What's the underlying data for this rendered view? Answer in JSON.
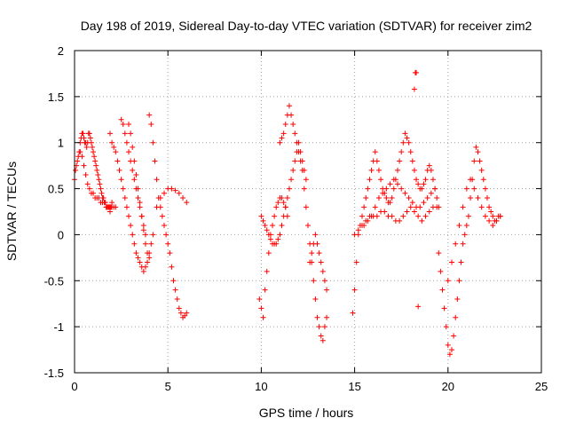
{
  "chart_data": {
    "type": "scatter",
    "title": "Day 198 of 2019, Sidereal Day-to-day VTEC variation (SDTVAR) for receiver zim2",
    "xlabel": "GPS time / hours",
    "ylabel": "SDTVAR / TECUs",
    "xlim": [
      0,
      25
    ],
    "ylim": [
      -1.5,
      2
    ],
    "xticks": [
      "0",
      "5",
      "10",
      "15",
      "20",
      "25"
    ],
    "yticks": [
      "-1.5",
      "-1",
      "-0.5",
      "0",
      "0.5",
      "1",
      "1.5",
      "2"
    ],
    "grid": true,
    "marker": "+",
    "color": "#ff0000",
    "series": [
      {
        "name": "SDTVAR",
        "x": [
          0.0,
          0.05,
          0.1,
          0.15,
          0.2,
          0.25,
          0.3,
          0.35,
          0.4,
          0.45,
          0.5,
          0.55,
          0.6,
          0.65,
          0.7,
          0.75,
          0.8,
          0.85,
          0.9,
          0.95,
          1.0,
          1.05,
          1.1,
          1.15,
          1.2,
          1.25,
          1.3,
          1.35,
          1.4,
          1.45,
          1.5,
          1.55,
          1.6,
          1.65,
          1.7,
          1.75,
          1.8,
          1.85,
          1.9,
          1.95,
          2.0,
          0.3,
          0.4,
          0.5,
          0.6,
          0.7,
          0.8,
          0.9,
          1.0,
          1.1,
          1.2,
          1.3,
          1.4,
          1.5,
          1.6,
          1.7,
          1.8,
          1.9,
          2.0,
          2.1,
          2.2,
          1.9,
          2.0,
          2.1,
          2.2,
          2.3,
          2.4,
          2.5,
          2.6,
          2.7,
          2.8,
          2.9,
          3.0,
          3.1,
          3.2,
          3.3,
          3.4,
          3.5,
          3.6,
          3.7,
          3.8,
          3.9,
          4.0,
          2.5,
          2.6,
          2.7,
          2.8,
          2.9,
          3.0,
          3.1,
          3.2,
          3.3,
          3.4,
          3.5,
          3.6,
          3.7,
          3.8,
          2.9,
          3.0,
          3.1,
          3.2,
          3.3,
          3.4,
          3.5,
          3.6,
          3.7,
          3.8,
          3.9,
          4.0,
          4.1,
          4.2,
          4.0,
          4.1,
          4.2,
          4.3,
          4.4,
          4.5,
          4.6,
          4.7,
          4.8,
          4.9,
          5.0,
          5.1,
          5.2,
          5.3,
          5.4,
          5.5,
          5.6,
          5.7,
          5.8,
          5.9,
          6.0,
          4.4,
          4.6,
          4.8,
          5.0,
          5.2,
          5.4,
          5.6,
          5.8,
          6.0,
          9.9,
          10.0,
          10.1,
          10.2,
          10.3,
          10.4,
          10.5,
          10.6,
          10.7,
          10.8,
          10.9,
          11.0,
          11.1,
          11.2,
          11.3,
          11.4,
          10.0,
          10.1,
          10.2,
          10.3,
          10.4,
          10.5,
          10.6,
          10.7,
          10.8,
          10.9,
          11.0,
          11.1,
          11.2,
          11.3,
          11.4,
          11.5,
          11.6,
          11.7,
          11.8,
          11.9,
          12.0,
          12.1,
          12.2,
          12.3,
          12.4,
          11.0,
          11.1,
          11.2,
          11.3,
          11.4,
          11.5,
          11.6,
          11.7,
          11.8,
          11.9,
          12.0,
          12.1,
          12.2,
          12.3,
          12.4,
          12.5,
          12.6,
          12.7,
          12.8,
          12.9,
          13.0,
          13.1,
          13.2,
          13.3,
          13.4,
          13.5,
          12.6,
          12.7,
          12.8,
          12.9,
          13.0,
          13.1,
          13.2,
          13.3,
          13.4,
          13.5,
          14.9,
          15.0,
          15.1,
          15.2,
          15.3,
          15.4,
          15.5,
          15.6,
          15.7,
          15.8,
          15.9,
          16.0,
          16.1,
          16.2,
          16.3,
          16.4,
          16.5,
          16.6,
          16.7,
          16.8,
          16.9,
          17.0,
          17.1,
          17.2,
          17.3,
          17.4,
          17.5,
          17.6,
          17.7,
          17.8,
          17.9,
          18.0,
          18.1,
          18.2,
          18.3,
          18.4,
          18.5,
          18.6,
          18.7,
          18.8,
          18.9,
          19.0,
          19.1,
          19.2,
          19.3,
          19.4,
          19.5,
          15.0,
          15.2,
          15.4,
          15.6,
          15.8,
          16.0,
          16.2,
          16.4,
          16.6,
          16.8,
          17.0,
          17.2,
          17.4,
          17.6,
          17.8,
          18.0,
          18.2,
          18.4,
          18.6,
          18.8,
          19.0,
          19.2,
          19.4,
          15.5,
          15.7,
          15.9,
          16.1,
          16.3,
          16.5,
          16.7,
          16.9,
          17.1,
          17.3,
          17.5,
          17.7,
          17.9,
          18.1,
          18.3,
          18.5,
          18.7,
          18.9,
          19.1,
          19.3,
          18.2,
          18.25,
          18.3,
          18.4,
          19.5,
          19.6,
          19.7,
          19.8,
          19.9,
          20.0,
          20.1,
          20.2,
          20.3,
          20.4,
          20.5,
          20.6,
          20.7,
          20.8,
          20.9,
          21.0,
          21.1,
          21.2,
          21.3,
          21.4,
          21.5,
          21.6,
          21.7,
          21.8,
          21.9,
          22.0,
          22.1,
          22.2,
          22.3,
          22.4,
          22.5,
          22.6,
          22.7,
          22.8,
          20.0,
          20.2,
          20.4,
          20.6,
          20.8,
          21.0,
          21.2,
          21.4,
          21.6,
          21.8,
          22.0,
          22.2,
          22.4,
          22.6,
          22.8
        ],
        "y": [
          0.6,
          0.7,
          0.75,
          0.8,
          0.85,
          0.9,
          1.0,
          1.05,
          1.1,
          1.1,
          1.05,
          1.0,
          1.0,
          0.95,
          1.0,
          1.1,
          1.1,
          1.05,
          1.0,
          0.95,
          0.9,
          0.85,
          0.8,
          0.75,
          0.7,
          0.65,
          0.6,
          0.55,
          0.5,
          0.45,
          0.4,
          0.4,
          0.35,
          0.35,
          0.3,
          0.3,
          0.3,
          0.3,
          0.25,
          0.3,
          0.35,
          0.9,
          0.85,
          0.75,
          0.65,
          0.55,
          0.5,
          0.45,
          0.45,
          0.4,
          0.4,
          0.4,
          0.35,
          0.35,
          0.35,
          0.3,
          0.3,
          0.3,
          0.3,
          0.3,
          0.3,
          1.1,
          1.0,
          0.95,
          0.9,
          0.8,
          0.7,
          0.6,
          0.5,
          0.4,
          0.3,
          0.2,
          0.1,
          0.0,
          -0.1,
          -0.2,
          -0.25,
          -0.3,
          -0.35,
          -0.4,
          -0.35,
          -0.3,
          -0.25,
          1.25,
          1.2,
          1.1,
          1.0,
          0.9,
          0.8,
          0.7,
          0.6,
          0.5,
          0.4,
          0.3,
          0.2,
          0.1,
          0.0,
          1.2,
          1.1,
          0.95,
          0.8,
          0.65,
          0.5,
          0.35,
          0.2,
          0.05,
          -0.1,
          -0.2,
          -0.2,
          -0.1,
          0.0,
          1.3,
          1.2,
          1.0,
          0.8,
          0.6,
          0.4,
          0.3,
          0.2,
          0.1,
          0.0,
          -0.1,
          -0.2,
          -0.35,
          -0.5,
          -0.6,
          -0.7,
          -0.8,
          -0.85,
          -0.9,
          -0.88,
          -0.85,
          0.3,
          0.4,
          0.45,
          0.5,
          0.5,
          0.48,
          0.45,
          0.4,
          0.35,
          -0.7,
          -0.8,
          -0.9,
          -0.6,
          -0.4,
          -0.2,
          0.0,
          0.1,
          0.2,
          0.3,
          0.35,
          0.4,
          0.4,
          0.35,
          0.3,
          0.2,
          0.2,
          0.15,
          0.1,
          0.05,
          0.0,
          -0.05,
          -0.1,
          -0.1,
          -0.1,
          -0.05,
          0.0,
          0.1,
          0.2,
          0.3,
          0.4,
          0.5,
          0.6,
          0.7,
          0.8,
          0.9,
          1.0,
          0.9,
          0.8,
          0.7,
          0.6,
          1.0,
          1.05,
          1.1,
          1.2,
          1.3,
          1.4,
          1.3,
          1.2,
          1.1,
          1.0,
          0.9,
          0.8,
          0.7,
          0.5,
          0.3,
          0.1,
          -0.1,
          -0.3,
          -0.5,
          -0.7,
          -0.9,
          -1.0,
          -1.1,
          -1.15,
          -1.0,
          -0.9,
          -0.3,
          -0.2,
          -0.1,
          0.0,
          -0.1,
          -0.2,
          -0.3,
          -0.4,
          -0.5,
          -0.6,
          -0.85,
          -0.6,
          -0.3,
          0.0,
          0.1,
          0.2,
          0.3,
          0.4,
          0.5,
          0.6,
          0.7,
          0.8,
          0.9,
          0.8,
          0.7,
          0.6,
          0.5,
          0.45,
          0.4,
          0.35,
          0.35,
          0.4,
          0.5,
          0.6,
          0.7,
          0.8,
          0.9,
          1.0,
          1.1,
          1.05,
          1.0,
          0.9,
          0.8,
          0.7,
          0.6,
          0.55,
          0.5,
          0.5,
          0.55,
          0.6,
          0.7,
          0.75,
          0.7,
          0.6,
          0.5,
          0.4,
          0.3,
          0.0,
          0.05,
          0.1,
          0.15,
          0.2,
          0.2,
          0.2,
          0.25,
          0.25,
          0.2,
          0.2,
          0.15,
          0.15,
          0.2,
          0.25,
          0.3,
          0.25,
          0.2,
          0.15,
          0.2,
          0.25,
          0.3,
          0.3,
          0.1,
          0.15,
          0.2,
          0.3,
          0.4,
          0.45,
          0.5,
          0.55,
          0.6,
          0.55,
          0.5,
          0.45,
          0.4,
          0.35,
          0.3,
          0.3,
          0.35,
          0.4,
          0.45,
          0.5,
          1.58,
          1.76,
          1.76,
          -0.78,
          -0.2,
          -0.4,
          -0.6,
          -0.8,
          -1.0,
          -1.2,
          -1.3,
          -1.25,
          -1.1,
          -0.9,
          -0.7,
          -0.5,
          -0.3,
          -0.1,
          0.0,
          0.1,
          0.2,
          0.4,
          0.6,
          0.8,
          0.95,
          0.9,
          0.8,
          0.7,
          0.6,
          0.5,
          0.4,
          0.3,
          0.25,
          0.2,
          0.15,
          0.15,
          0.2,
          0.2,
          -0.5,
          -0.3,
          -0.1,
          0.1,
          0.3,
          0.5,
          0.6,
          0.5,
          0.4,
          0.3,
          0.2,
          0.15,
          0.1,
          0.15,
          0.2
        ]
      }
    ]
  }
}
